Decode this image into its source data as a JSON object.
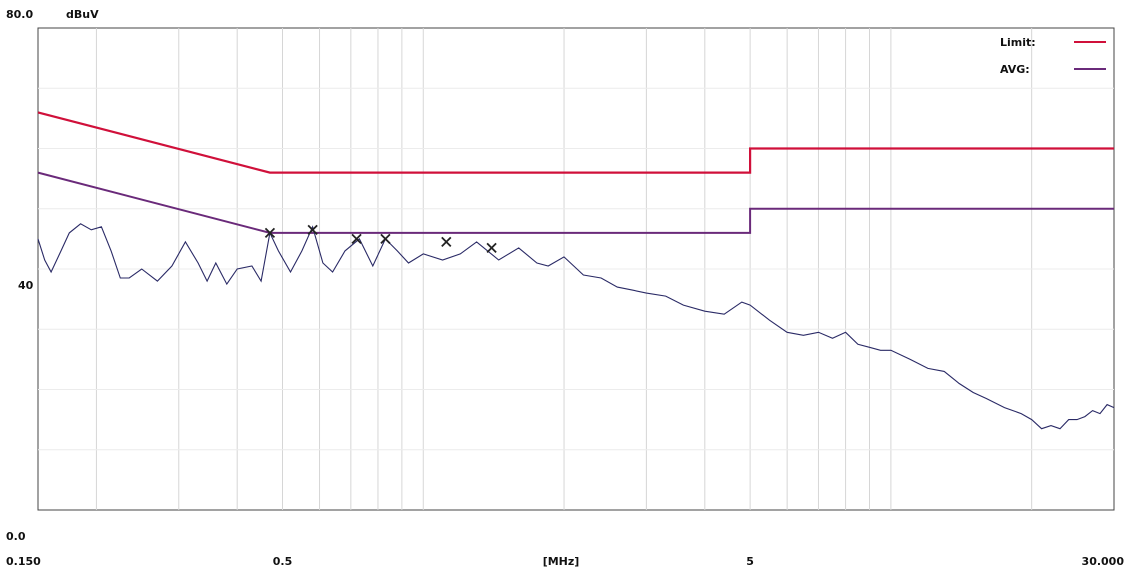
{
  "chart_data": {
    "type": "line",
    "y_top_label": "80.0",
    "y_unit": "dBuV",
    "y_mid_label": "40",
    "y_bottom_label": "0.0",
    "x_unit_label": "[MHz]",
    "x_tick_labels": [
      {
        "x": 0.15,
        "label": "0.150"
      },
      {
        "x": 0.5,
        "label": "0.5"
      },
      {
        "x": 5,
        "label": "5"
      },
      {
        "x": 30,
        "label": "30.000"
      }
    ],
    "x_axis": {
      "type": "log",
      "min": 0.15,
      "max": 30
    },
    "y_axis": {
      "min": 0,
      "max": 80
    },
    "grid": true,
    "legend_position": "top-right",
    "legend": [
      {
        "name": "Limit:",
        "color": "#d0103a"
      },
      {
        "name": "AVG:",
        "color": "#6a2a7a"
      }
    ],
    "limit_line": {
      "color": "#d0103a",
      "points": [
        [
          0.15,
          66
        ],
        [
          0.47,
          56
        ],
        [
          5,
          56
        ],
        [
          5,
          60
        ],
        [
          30,
          60
        ]
      ]
    },
    "avg_limit_line": {
      "color": "#6a2a7a",
      "points": [
        [
          0.15,
          56
        ],
        [
          0.47,
          46
        ],
        [
          5,
          46
        ],
        [
          5,
          50
        ],
        [
          30,
          50
        ]
      ]
    },
    "measurement_trace": {
      "color": "#2a2a66",
      "points": [
        [
          0.15,
          45
        ],
        [
          0.155,
          41.5
        ],
        [
          0.16,
          39.5
        ],
        [
          0.168,
          43
        ],
        [
          0.175,
          46
        ],
        [
          0.185,
          47.5
        ],
        [
          0.195,
          46.5
        ],
        [
          0.205,
          47
        ],
        [
          0.215,
          43
        ],
        [
          0.225,
          38.5
        ],
        [
          0.235,
          38.5
        ],
        [
          0.25,
          40
        ],
        [
          0.27,
          38
        ],
        [
          0.29,
          40.5
        ],
        [
          0.31,
          44.5
        ],
        [
          0.33,
          41
        ],
        [
          0.345,
          38
        ],
        [
          0.36,
          41
        ],
        [
          0.38,
          37.5
        ],
        [
          0.4,
          40
        ],
        [
          0.43,
          40.5
        ],
        [
          0.45,
          38
        ],
        [
          0.47,
          46
        ],
        [
          0.49,
          43
        ],
        [
          0.52,
          39.5
        ],
        [
          0.55,
          43
        ],
        [
          0.58,
          47
        ],
        [
          0.61,
          41
        ],
        [
          0.64,
          39.5
        ],
        [
          0.68,
          43
        ],
        [
          0.73,
          45
        ],
        [
          0.78,
          40.5
        ],
        [
          0.83,
          45
        ],
        [
          0.88,
          43
        ],
        [
          0.93,
          41
        ],
        [
          1.0,
          42.5
        ],
        [
          1.1,
          41.5
        ],
        [
          1.2,
          42.5
        ],
        [
          1.3,
          44.5
        ],
        [
          1.45,
          41.5
        ],
        [
          1.6,
          43.5
        ],
        [
          1.75,
          41
        ],
        [
          1.85,
          40.5
        ],
        [
          2.0,
          42
        ],
        [
          2.2,
          39
        ],
        [
          2.4,
          38.5
        ],
        [
          2.6,
          37
        ],
        [
          2.8,
          36.5
        ],
        [
          3.0,
          36
        ],
        [
          3.3,
          35.5
        ],
        [
          3.6,
          34
        ],
        [
          4.0,
          33
        ],
        [
          4.4,
          32.5
        ],
        [
          4.8,
          34.5
        ],
        [
          5.0,
          34
        ],
        [
          5.5,
          31.5
        ],
        [
          6.0,
          29.5
        ],
        [
          6.5,
          29
        ],
        [
          7.0,
          29.5
        ],
        [
          7.5,
          28.5
        ],
        [
          8.0,
          29.5
        ],
        [
          8.5,
          27.5
        ],
        [
          9.0,
          27
        ],
        [
          9.5,
          26.5
        ],
        [
          10.0,
          26.5
        ],
        [
          11.0,
          25
        ],
        [
          12.0,
          23.5
        ],
        [
          13.0,
          23
        ],
        [
          14.0,
          21
        ],
        [
          15.0,
          19.5
        ],
        [
          16.0,
          18.5
        ],
        [
          17.5,
          17
        ],
        [
          19.0,
          16
        ],
        [
          20.0,
          15
        ],
        [
          21.0,
          13.5
        ],
        [
          22.0,
          14
        ],
        [
          23.0,
          13.5
        ],
        [
          24.0,
          15
        ],
        [
          25.0,
          15
        ],
        [
          26.0,
          15.5
        ],
        [
          27.0,
          16.5
        ],
        [
          28.0,
          16
        ],
        [
          29.0,
          17.5
        ],
        [
          30.0,
          17
        ]
      ]
    },
    "peak_markers": [
      {
        "x": 0.47,
        "y": 46
      },
      {
        "x": 0.58,
        "y": 46.5
      },
      {
        "x": 0.72,
        "y": 45
      },
      {
        "x": 0.83,
        "y": 45
      },
      {
        "x": 1.12,
        "y": 44.5
      },
      {
        "x": 1.4,
        "y": 43.5
      }
    ]
  }
}
